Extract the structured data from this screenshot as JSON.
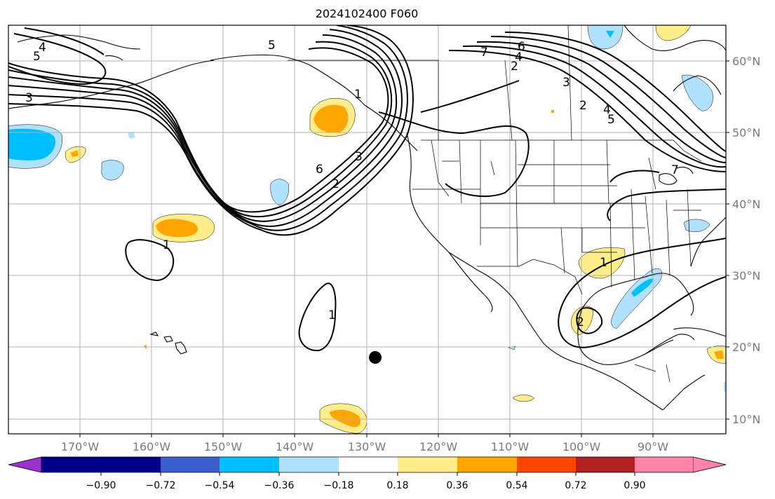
{
  "title": "2024102400 F060",
  "map": {
    "lon_labels": [
      "170°W",
      "160°W",
      "150°W",
      "140°W",
      "130°W",
      "120°W",
      "110°W",
      "100°W",
      "90°W"
    ],
    "lat_labels": [
      "60°N",
      "50°N",
      "40°N",
      "30°N",
      "20°N",
      "10°N"
    ],
    "contour_labels": [
      "4",
      "5",
      "3",
      "5",
      "6",
      "2",
      "3",
      "1",
      "4",
      "3",
      "2",
      "6",
      "7",
      "2",
      "4",
      "5",
      "7",
      "1",
      "1",
      "2",
      "1"
    ],
    "colors": {
      "coast": "#000000",
      "contour": "#000000",
      "grid": "#b0b0b0",
      "marker": "#000000"
    }
  },
  "colorbar": {
    "colors": [
      "#9a32cd",
      "#00008b",
      "#3a5fcd",
      "#00bfff",
      "#b0e2ff",
      "#ffffff",
      "#ffec8b",
      "#ffa500",
      "#ff4500",
      "#b22222",
      "#ff82ab"
    ],
    "tick_labels": [
      "−0.90",
      "−0.72",
      "−0.54",
      "−0.36",
      "−0.18",
      "0.18",
      "0.36",
      "0.54",
      "0.72",
      "0.90"
    ]
  }
}
